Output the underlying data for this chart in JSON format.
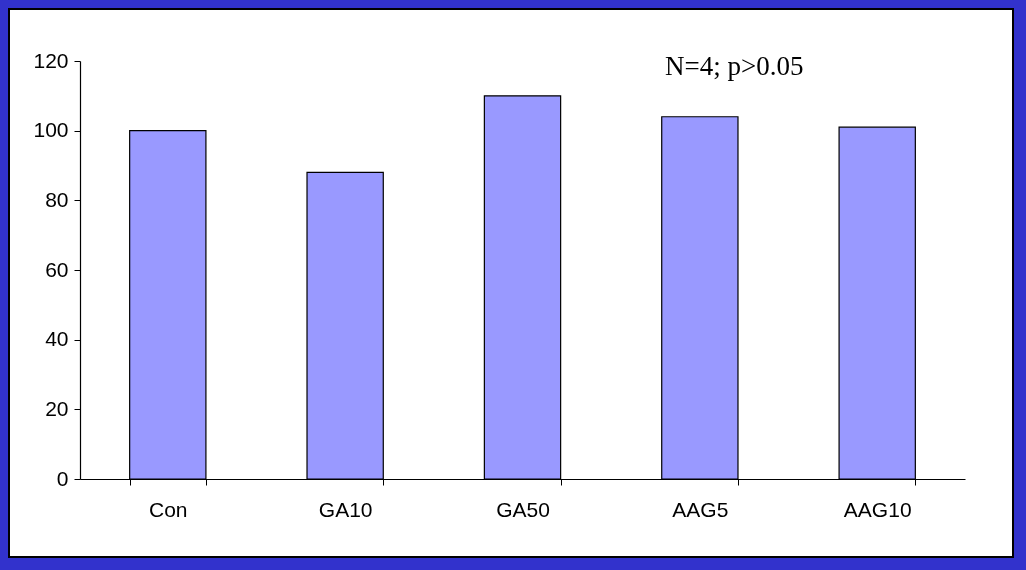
{
  "chart_data": {
    "type": "bar",
    "categories": [
      "Con",
      "GA10",
      "GA50",
      "AAG5",
      "AAG10"
    ],
    "values": [
      100,
      88,
      110,
      104,
      101
    ],
    "color": "#9999ff",
    "ylim": [
      0,
      120
    ],
    "yticks": [
      0,
      20,
      40,
      60,
      80,
      100,
      120
    ],
    "grid": false,
    "annotations": [
      "N=4; p>0.05"
    ]
  }
}
